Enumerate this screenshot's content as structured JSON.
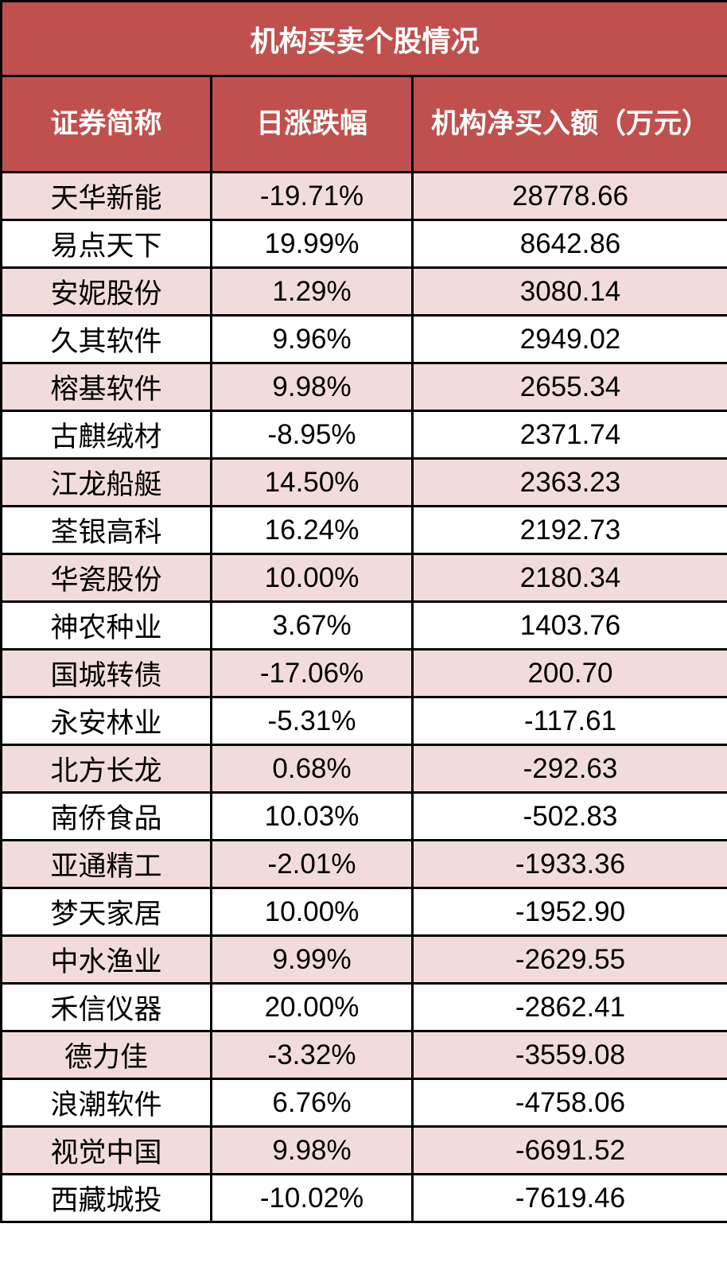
{
  "title": "机构买卖个股情况",
  "columns": [
    "证券简称",
    "日涨跌幅",
    "机构净买入额（万元）"
  ],
  "colors": {
    "header_bg": "#c0504d",
    "stripe_bg": "#f2dcdb",
    "header_text": "#ffffff"
  },
  "rows": [
    {
      "name": "天华新能",
      "change": "-19.71%",
      "net_buy": "28778.66"
    },
    {
      "name": "易点天下",
      "change": "19.99%",
      "net_buy": "8642.86"
    },
    {
      "name": "安妮股份",
      "change": "1.29%",
      "net_buy": "3080.14"
    },
    {
      "name": "久其软件",
      "change": "9.96%",
      "net_buy": "2949.02"
    },
    {
      "name": "榕基软件",
      "change": "9.98%",
      "net_buy": "2655.34"
    },
    {
      "name": "古麒绒材",
      "change": "-8.95%",
      "net_buy": "2371.74"
    },
    {
      "name": "江龙船艇",
      "change": "14.50%",
      "net_buy": "2363.23"
    },
    {
      "name": "荃银高科",
      "change": "16.24%",
      "net_buy": "2192.73"
    },
    {
      "name": "华瓷股份",
      "change": "10.00%",
      "net_buy": "2180.34"
    },
    {
      "name": "神农种业",
      "change": "3.67%",
      "net_buy": "1403.76"
    },
    {
      "name": "国城转债",
      "change": "-17.06%",
      "net_buy": "200.70"
    },
    {
      "name": "永安林业",
      "change": "-5.31%",
      "net_buy": "-117.61"
    },
    {
      "name": "北方长龙",
      "change": "0.68%",
      "net_buy": "-292.63"
    },
    {
      "name": "南侨食品",
      "change": "10.03%",
      "net_buy": "-502.83"
    },
    {
      "name": "亚通精工",
      "change": "-2.01%",
      "net_buy": "-1933.36"
    },
    {
      "name": "梦天家居",
      "change": "10.00%",
      "net_buy": "-1952.90"
    },
    {
      "name": "中水渔业",
      "change": "9.99%",
      "net_buy": "-2629.55"
    },
    {
      "name": "禾信仪器",
      "change": "20.00%",
      "net_buy": "-2862.41"
    },
    {
      "name": "德力佳",
      "change": "-3.32%",
      "net_buy": "-3559.08"
    },
    {
      "name": "浪潮软件",
      "change": "6.76%",
      "net_buy": "-4758.06"
    },
    {
      "name": "视觉中国",
      "change": "9.98%",
      "net_buy": "-6691.52"
    },
    {
      "name": "西藏城投",
      "change": "-10.02%",
      "net_buy": "-7619.46"
    }
  ]
}
